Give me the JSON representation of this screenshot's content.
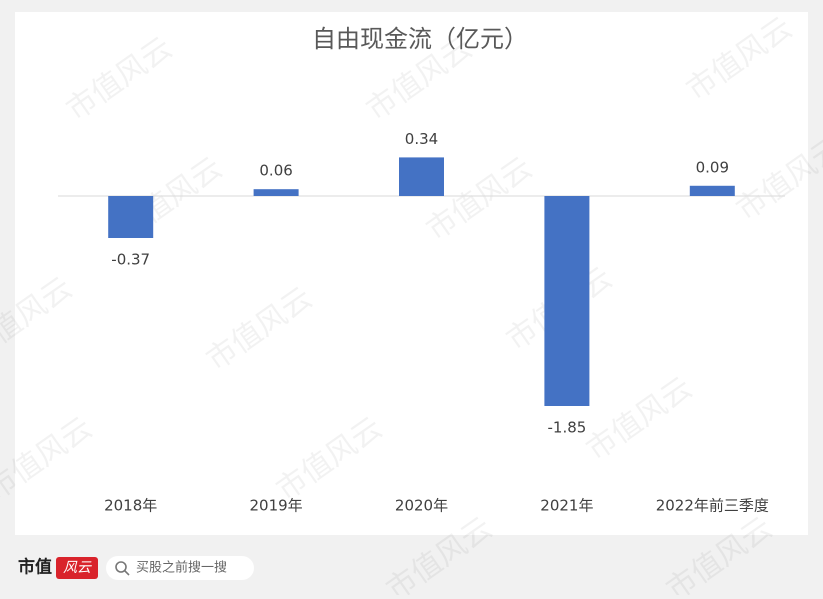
{
  "chart_data": {
    "type": "bar",
    "title": "自由现金流（亿元）",
    "categories": [
      "2018年",
      "2019年",
      "2020年",
      "2021年",
      "2022年前三季度"
    ],
    "values": [
      -0.37,
      0.06,
      0.34,
      -1.85,
      0.09
    ],
    "color": "#4472c4"
  },
  "watermark": "市值风云",
  "footer": {
    "brand": "市值",
    "badge": "风云",
    "search": "买股之前搜一搜"
  }
}
